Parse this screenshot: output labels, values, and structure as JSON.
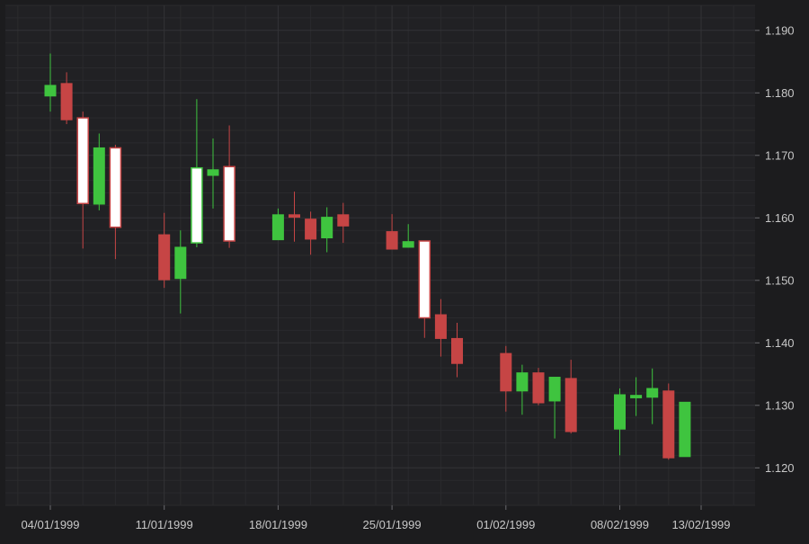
{
  "chart_data": {
    "type": "candlestick",
    "title": "",
    "xlabel": "",
    "ylabel": "",
    "ylim": [
      1.114,
      1.194
    ],
    "y_ticks": [
      "1.120",
      "1.130",
      "1.140",
      "1.150",
      "1.160",
      "1.170",
      "1.180",
      "1.190"
    ],
    "x_ticks": [
      "04/01/1999",
      "11/01/1999",
      "18/01/1999",
      "25/01/1999",
      "01/02/1999",
      "08/02/1999",
      "13/02/1999"
    ],
    "grid": true,
    "colors": {
      "background": "#1c1c1e",
      "plot_background": "#212124",
      "grid_major": "#333336",
      "grid_minor": "#2a2a2d",
      "up": "#3fc43f",
      "down": "#c64545",
      "highlight_fill": "#ffffff",
      "axis_text": "#c8c8c8"
    },
    "candles": [
      {
        "date": "04/01/1999",
        "open": 1.1795,
        "high": 1.1863,
        "low": 1.177,
        "close": 1.1812
      },
      {
        "date": "05/01/1999",
        "open": 1.1815,
        "high": 1.1833,
        "low": 1.175,
        "close": 1.1757
      },
      {
        "date": "06/01/1999",
        "open": 1.176,
        "high": 1.177,
        "low": 1.1551,
        "close": 1.1623,
        "highlight": true
      },
      {
        "date": "07/01/1999",
        "open": 1.1622,
        "high": 1.1735,
        "low": 1.1612,
        "close": 1.1712
      },
      {
        "date": "08/01/1999",
        "open": 1.1712,
        "high": 1.1717,
        "low": 1.1534,
        "close": 1.1585,
        "highlight": true
      },
      {
        "date": "11/01/1999",
        "open": 1.1573,
        "high": 1.1608,
        "low": 1.1488,
        "close": 1.1501
      },
      {
        "date": "12/01/1999",
        "open": 1.1503,
        "high": 1.158,
        "low": 1.1447,
        "close": 1.1553
      },
      {
        "date": "13/01/1999",
        "open": 1.156,
        "high": 1.179,
        "low": 1.1553,
        "close": 1.168,
        "highlight": true
      },
      {
        "date": "14/01/1999",
        "open": 1.1668,
        "high": 1.1727,
        "low": 1.1615,
        "close": 1.1677
      },
      {
        "date": "15/01/1999",
        "open": 1.1682,
        "high": 1.1748,
        "low": 1.1552,
        "close": 1.1563,
        "highlight": true
      },
      {
        "date": "18/01/1999",
        "open": 1.1565,
        "high": 1.1615,
        "low": 1.1565,
        "close": 1.1605
      },
      {
        "date": "19/01/1999",
        "open": 1.1605,
        "high": 1.1642,
        "low": 1.1562,
        "close": 1.1601
      },
      {
        "date": "20/01/1999",
        "open": 1.1598,
        "high": 1.161,
        "low": 1.1541,
        "close": 1.1566
      },
      {
        "date": "21/01/1999",
        "open": 1.1568,
        "high": 1.1617,
        "low": 1.1545,
        "close": 1.1601
      },
      {
        "date": "22/01/1999",
        "open": 1.1605,
        "high": 1.1624,
        "low": 1.156,
        "close": 1.1587
      },
      {
        "date": "25/01/1999",
        "open": 1.1578,
        "high": 1.1606,
        "low": 1.155,
        "close": 1.155
      },
      {
        "date": "26/01/1999",
        "open": 1.1553,
        "high": 1.159,
        "low": 1.1553,
        "close": 1.1562
      },
      {
        "date": "27/01/1999",
        "open": 1.1563,
        "high": 1.1563,
        "low": 1.1408,
        "close": 1.144,
        "highlight": true
      },
      {
        "date": "28/01/1999",
        "open": 1.1445,
        "high": 1.147,
        "low": 1.1378,
        "close": 1.1407
      },
      {
        "date": "29/01/1999",
        "open": 1.1407,
        "high": 1.1432,
        "low": 1.1345,
        "close": 1.1367
      },
      {
        "date": "01/02/1999",
        "open": 1.1383,
        "high": 1.1395,
        "low": 1.129,
        "close": 1.1323
      },
      {
        "date": "02/02/1999",
        "open": 1.1323,
        "high": 1.1365,
        "low": 1.1285,
        "close": 1.1352
      },
      {
        "date": "03/02/1999",
        "open": 1.1352,
        "high": 1.136,
        "low": 1.13,
        "close": 1.1304
      },
      {
        "date": "04/02/1999",
        "open": 1.1307,
        "high": 1.1345,
        "low": 1.1247,
        "close": 1.1345
      },
      {
        "date": "05/02/1999",
        "open": 1.1343,
        "high": 1.1373,
        "low": 1.1255,
        "close": 1.1258
      },
      {
        "date": "08/02/1999",
        "open": 1.1262,
        "high": 1.1327,
        "low": 1.122,
        "close": 1.1317
      },
      {
        "date": "09/02/1999",
        "open": 1.1312,
        "high": 1.1345,
        "low": 1.1283,
        "close": 1.1316
      },
      {
        "date": "10/02/1999",
        "open": 1.1313,
        "high": 1.1359,
        "low": 1.127,
        "close": 1.1327
      },
      {
        "date": "11/02/1999",
        "open": 1.1323,
        "high": 1.1335,
        "low": 1.1213,
        "close": 1.1216
      },
      {
        "date": "12/02/1999",
        "open": 1.1218,
        "high": 1.1305,
        "low": 1.1218,
        "close": 1.1305
      }
    ]
  }
}
